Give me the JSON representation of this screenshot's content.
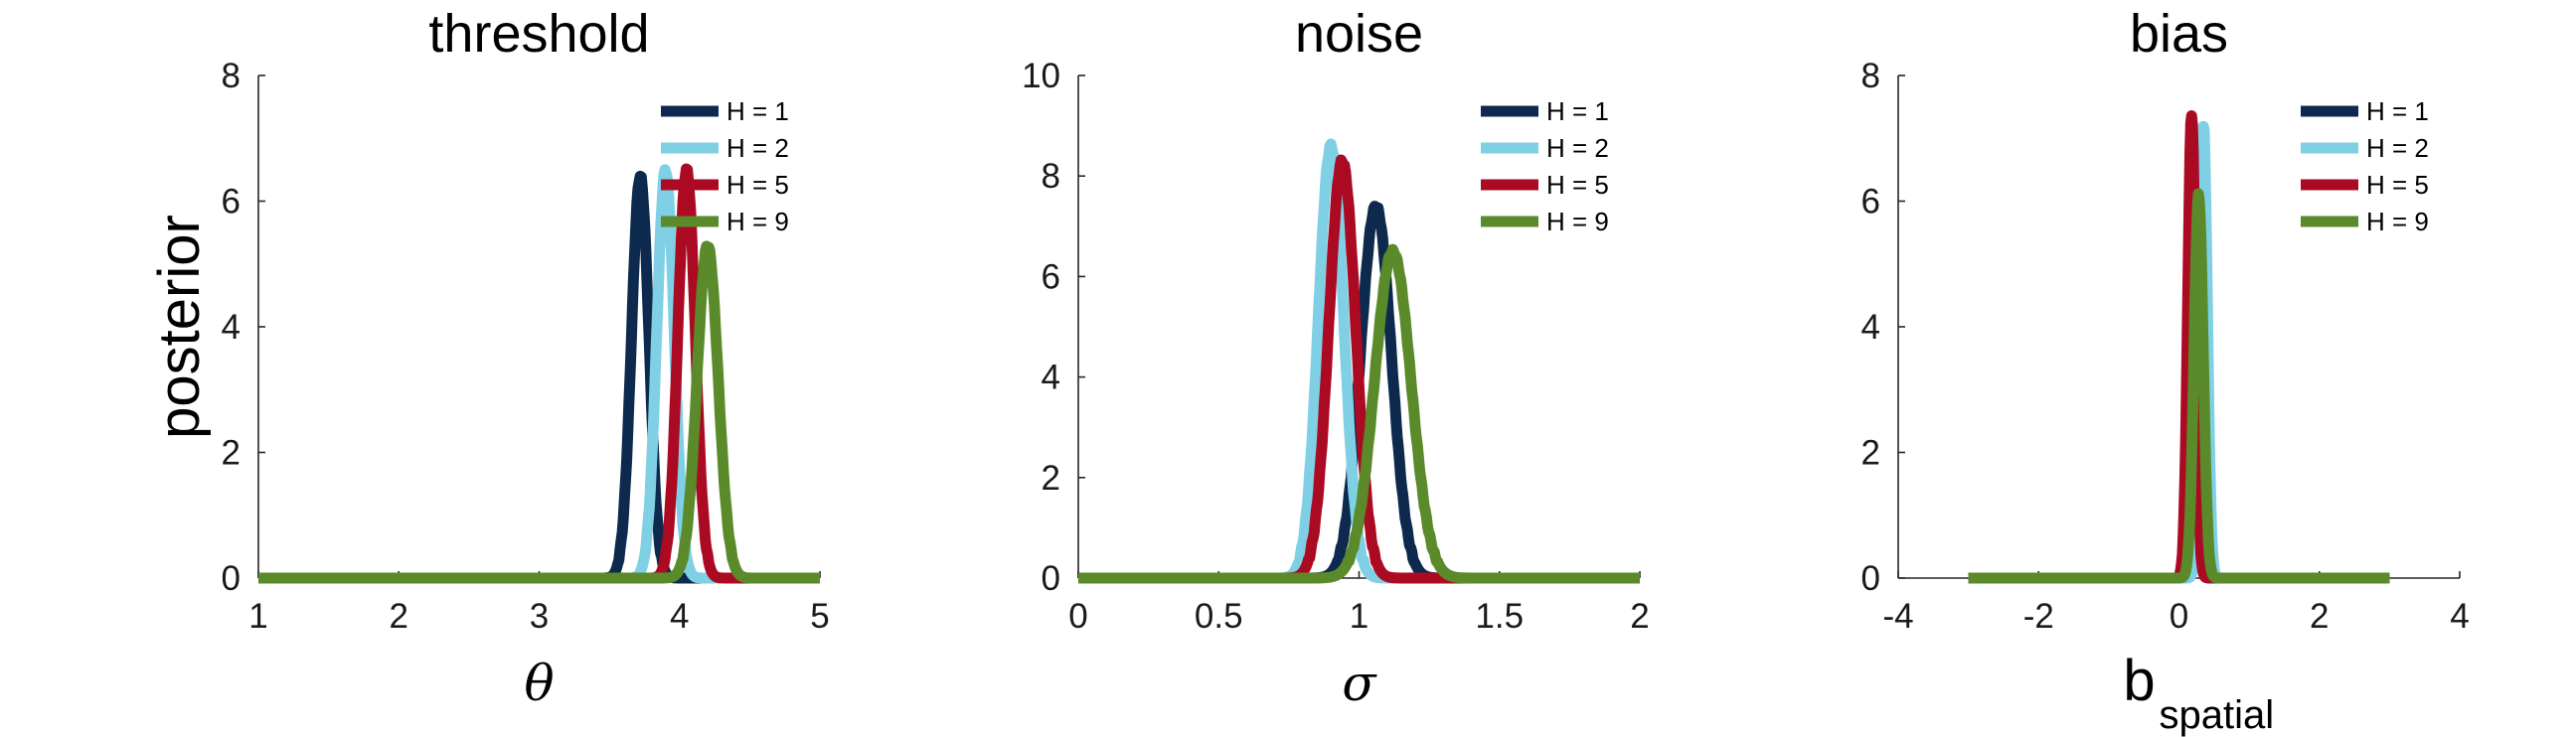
{
  "colors": {
    "h1": "#0d2a4e",
    "h2": "#7fd0e5",
    "h5": "#aa0a22",
    "h9": "#5a8a2a"
  },
  "chart_data": [
    {
      "type": "line",
      "title": "threshold",
      "ylabel": "posterior",
      "xlabel": "θ",
      "xlim": [
        1,
        5
      ],
      "ylim": [
        0,
        8
      ],
      "xticks": [
        "1",
        "2",
        "3",
        "4",
        "5"
      ],
      "yticks": [
        "0",
        "2",
        "4",
        "6",
        "8"
      ],
      "legend_position": "top-right",
      "series": [
        {
          "name": "H = 1",
          "mu": 3.72,
          "sd": 0.062,
          "peak": 6.4,
          "range": [
            1,
            5
          ],
          "color_key": "h1"
        },
        {
          "name": "H = 2",
          "mu": 3.9,
          "sd": 0.062,
          "peak": 6.5,
          "range": [
            1,
            5
          ],
          "color_key": "h2"
        },
        {
          "name": "H = 5",
          "mu": 4.05,
          "sd": 0.062,
          "peak": 6.5,
          "range": [
            1,
            5
          ],
          "color_key": "h5"
        },
        {
          "name": "H = 9",
          "mu": 4.2,
          "sd": 0.075,
          "peak": 5.3,
          "range": [
            1,
            5
          ],
          "color_key": "h9"
        }
      ]
    },
    {
      "type": "line",
      "title": "noise",
      "ylabel": "",
      "xlabel": "σ",
      "xlim": [
        0,
        2
      ],
      "ylim": [
        0,
        10
      ],
      "xticks": [
        "0",
        "0.5",
        "1",
        "1.5",
        "2"
      ],
      "yticks": [
        "0",
        "2",
        "4",
        "6",
        "8",
        "10"
      ],
      "legend_position": "top-right",
      "series": [
        {
          "name": "H = 1",
          "mu": 1.06,
          "sd": 0.055,
          "peak": 7.4,
          "range": [
            0,
            2
          ],
          "color_key": "h1"
        },
        {
          "name": "H = 2",
          "mu": 0.9,
          "sd": 0.045,
          "peak": 8.6,
          "range": [
            0,
            2
          ],
          "color_key": "h2"
        },
        {
          "name": "H = 5",
          "mu": 0.94,
          "sd": 0.048,
          "peak": 8.3,
          "range": [
            0,
            2
          ],
          "color_key": "h5"
        },
        {
          "name": "H = 9",
          "mu": 1.12,
          "sd": 0.065,
          "peak": 6.5,
          "range": [
            0,
            2
          ],
          "color_key": "h9"
        }
      ]
    },
    {
      "type": "line",
      "title": "bias",
      "ylabel": "",
      "xlabel": "b",
      "xlabel_sub": "spatial",
      "xlim": [
        -4,
        4
      ],
      "ylim": [
        0,
        8
      ],
      "xticks": [
        "-4",
        "-2",
        "0",
        "2",
        "4"
      ],
      "yticks": [
        "0",
        "2",
        "4",
        "6",
        "8"
      ],
      "legend_position": "top-right",
      "series": [
        {
          "name": "H = 1",
          "mu": 0.25,
          "sd": 0.055,
          "peak": 6.8,
          "range": [
            -3,
            3
          ],
          "color_key": "h1"
        },
        {
          "name": "H = 2",
          "mu": 0.35,
          "sd": 0.055,
          "peak": 7.2,
          "range": [
            -3,
            3
          ],
          "color_key": "h2"
        },
        {
          "name": "H = 5",
          "mu": 0.18,
          "sd": 0.055,
          "peak": 7.4,
          "range": [
            -3,
            3
          ],
          "color_key": "h5"
        },
        {
          "name": "H = 9",
          "mu": 0.28,
          "sd": 0.065,
          "peak": 6.1,
          "range": [
            -3,
            3
          ],
          "color_key": "h9"
        }
      ]
    }
  ]
}
